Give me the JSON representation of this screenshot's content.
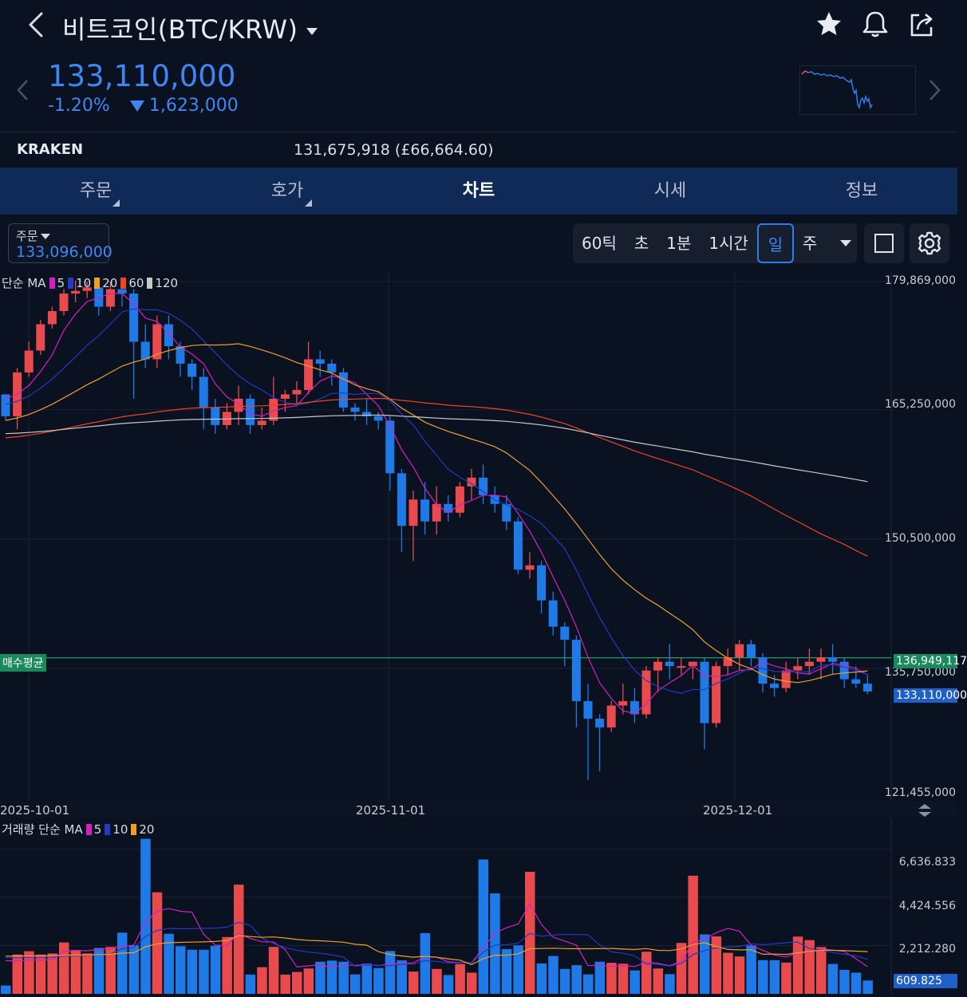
{
  "header": {
    "title": "비트코인(BTC/KRW)",
    "price": "133,110,000",
    "change_pct": "-1.20%",
    "change_amt": "1,623,000"
  },
  "exchange": {
    "name": "KRAKEN",
    "value": "131,675,918 (£66,664.60)"
  },
  "tabs": [
    {
      "label": "주문"
    },
    {
      "label": "호가"
    },
    {
      "label": "차트"
    },
    {
      "label": "시세"
    },
    {
      "label": "정보"
    }
  ],
  "toolbar": {
    "order_label": "주문",
    "order_value": "133,096,000",
    "timeframes": [
      "60틱",
      "초",
      "1분",
      "1시간",
      "일",
      "주"
    ],
    "selected_timeframe": "일"
  },
  "colors": {
    "up": "#e84a4e",
    "down": "#1f7ae8",
    "ma5": "#d61fc0",
    "ma10": "#2439c4",
    "ma20": "#f0a020",
    "ma60": "#f0451f",
    "ma120": "#c8c8c8",
    "avg_line": "#2aa876"
  },
  "legend_price": {
    "label": "단순 MA",
    "p1": "5",
    "p2": "10",
    "p3": "20",
    "p4": "60",
    "p5": "120"
  },
  "legend_volume": {
    "label": "거래량 단순 MA",
    "p1": "5",
    "p2": "10",
    "p3": "20"
  },
  "price_axis": [
    "179,869,000",
    "165,250,000",
    "150,500,000",
    "135,750,000",
    "121,455,000"
  ],
  "volume_axis": [
    "6,636.833",
    "4,424.556",
    "2,212.280"
  ],
  "tags": {
    "avg_label": "매수평균",
    "avg_price": "136,949,117",
    "last_price": "133,110,000",
    "last_volume": "609.825"
  },
  "chart_data": {
    "type": "candlestick",
    "x_labels": [
      "2025-10-01",
      "2025-11-01",
      "2025-12-01"
    ],
    "ylim": [
      121455000,
      179869000
    ],
    "avg_buy_price": 136949117,
    "last_price": 133110000,
    "candles": [
      [
        167000000,
        164500000,
        167000000,
        164000000
      ],
      [
        164500000,
        169500000,
        170000000,
        163000000
      ],
      [
        169500000,
        172000000,
        173000000,
        169000000
      ],
      [
        172000000,
        175000000,
        175500000,
        171500000
      ],
      [
        175000000,
        176500000,
        177000000,
        174500000
      ],
      [
        176500000,
        178500000,
        179000000,
        176000000
      ],
      [
        178500000,
        178800000,
        180000000,
        177500000
      ],
      [
        178800000,
        179200000,
        179869000,
        178000000
      ],
      [
        179200000,
        177000000,
        179500000,
        176000000
      ],
      [
        177000000,
        179000000,
        179869000,
        176500000
      ],
      [
        179000000,
        178500000,
        179500000,
        177000000
      ],
      [
        178500000,
        173000000,
        179000000,
        166500000
      ],
      [
        173000000,
        171000000,
        175000000,
        170000000
      ],
      [
        171000000,
        175000000,
        176000000,
        170000000
      ],
      [
        175000000,
        172500000,
        176000000,
        171000000
      ],
      [
        172500000,
        170500000,
        173000000,
        169000000
      ],
      [
        170500000,
        169000000,
        171000000,
        167500000
      ],
      [
        169000000,
        165500000,
        170000000,
        163000000
      ],
      [
        165500000,
        163500000,
        166500000,
        162500000
      ],
      [
        163500000,
        165000000,
        166000000,
        163000000
      ],
      [
        165000000,
        166500000,
        168000000,
        163500000
      ],
      [
        166500000,
        163500000,
        167000000,
        162500000
      ],
      [
        163500000,
        164000000,
        165500000,
        163000000
      ],
      [
        164000000,
        166500000,
        169000000,
        163500000
      ],
      [
        166500000,
        167000000,
        167500000,
        165000000
      ],
      [
        167000000,
        167500000,
        168500000,
        166000000
      ],
      [
        167500000,
        171000000,
        173000000,
        167000000
      ],
      [
        171000000,
        170500000,
        172000000,
        169000000
      ],
      [
        170500000,
        169500000,
        171000000,
        168000000
      ],
      [
        169500000,
        165500000,
        170000000,
        165000000
      ],
      [
        165500000,
        165000000,
        166000000,
        164000000
      ],
      [
        165000000,
        164500000,
        166500000,
        163500000
      ],
      [
        164500000,
        164000000,
        165000000,
        163000000
      ],
      [
        164000000,
        158000000,
        164500000,
        156000000
      ],
      [
        158000000,
        152000000,
        158500000,
        149000000
      ],
      [
        152000000,
        155000000,
        156000000,
        148000000
      ],
      [
        155000000,
        152500000,
        157000000,
        151000000
      ],
      [
        152500000,
        154500000,
        156500000,
        151000000
      ],
      [
        154500000,
        153500000,
        155500000,
        152500000
      ],
      [
        153500000,
        156500000,
        157000000,
        153000000
      ],
      [
        156500000,
        157500000,
        158500000,
        155000000
      ],
      [
        157500000,
        155500000,
        159000000,
        154500000
      ],
      [
        155500000,
        154500000,
        156500000,
        153500000
      ],
      [
        154500000,
        152500000,
        155500000,
        151500000
      ],
      [
        152500000,
        147000000,
        153000000,
        146500000
      ],
      [
        147000000,
        147500000,
        149000000,
        146000000
      ],
      [
        147500000,
        143500000,
        148000000,
        142000000
      ],
      [
        143500000,
        140500000,
        144500000,
        139500000
      ],
      [
        140500000,
        139000000,
        141000000,
        136000000
      ],
      [
        139000000,
        132000000,
        139500000,
        129000000
      ],
      [
        132000000,
        130000000,
        134000000,
        123000000
      ],
      [
        130000000,
        129000000,
        130500000,
        124000000
      ],
      [
        129000000,
        131500000,
        132000000,
        128500000
      ],
      [
        131500000,
        132000000,
        134000000,
        130500000
      ],
      [
        132000000,
        130500000,
        133500000,
        129500000
      ],
      [
        130500000,
        135500000,
        136000000,
        130000000
      ],
      [
        135500000,
        136500000,
        137000000,
        133000000
      ],
      [
        136500000,
        136000000,
        138500000,
        134500000
      ],
      [
        136000000,
        136000000,
        137000000,
        135000000
      ],
      [
        136000000,
        136500000,
        136500000,
        134500000
      ],
      [
        136500000,
        129500000,
        137000000,
        126500000
      ],
      [
        129500000,
        136000000,
        136500000,
        129000000
      ],
      [
        136000000,
        137000000,
        138000000,
        135000000
      ],
      [
        137000000,
        138500000,
        139000000,
        135500000
      ],
      [
        138500000,
        137000000,
        139000000,
        136000000
      ],
      [
        137000000,
        134000000,
        137500000,
        133000000
      ],
      [
        134000000,
        133500000,
        135000000,
        132500000
      ],
      [
        133500000,
        135500000,
        136500000,
        133000000
      ],
      [
        135500000,
        136000000,
        137000000,
        134500000
      ],
      [
        136000000,
        136500000,
        138000000,
        135000000
      ],
      [
        136500000,
        137000000,
        138000000,
        134500000
      ],
      [
        137000000,
        136500000,
        138500000,
        135000000
      ],
      [
        136500000,
        134500000,
        137000000,
        133500000
      ],
      [
        134500000,
        134000000,
        136000000,
        133500000
      ],
      [
        134000000,
        133110000,
        135000000,
        132800000
      ]
    ],
    "volumes": [
      380,
      1800,
      1950,
      1800,
      1850,
      2350,
      2000,
      1850,
      2100,
      2150,
      2800,
      2220,
      7100,
      4650,
      2750,
      2180,
      2020,
      2020,
      2200,
      2600,
      5000,
      880,
      1220,
      2150,
      880,
      1000,
      1160,
      1470,
      1520,
      1470,
      890,
      1380,
      1180,
      1960,
      1530,
      1020,
      2780,
      1140,
      860,
      1360,
      970,
      6150,
      4600,
      2050,
      2220,
      5590,
      1390,
      1730,
      1140,
      1310,
      890,
      1470,
      1420,
      1380,
      1070,
      1930,
      1160,
      900,
      2330,
      5410,
      2720,
      2630,
      1880,
      1710,
      2210,
      1540,
      1540,
      1430,
      2620,
      2460,
      2140,
      1370,
      1100,
      970,
      610
    ]
  }
}
